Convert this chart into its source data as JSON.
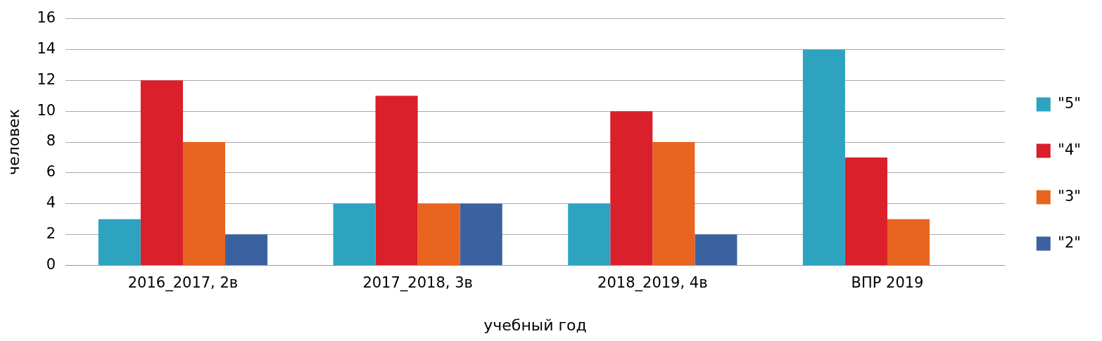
{
  "chart_data": {
    "type": "bar",
    "xlabel": "учебный год",
    "ylabel": "человек",
    "categories": [
      "2016_2017, 2в",
      "2017_2018, 3в",
      "2018_2019, 4в",
      "ВПР 2019"
    ],
    "series": [
      {
        "name": "\"5\"",
        "color": "#2ea3c0",
        "values": [
          3,
          4,
          4,
          14
        ]
      },
      {
        "name": "\"4\"",
        "color": "#d9202b",
        "values": [
          12,
          11,
          10,
          7
        ]
      },
      {
        "name": "\"3\"",
        "color": "#e8641f",
        "values": [
          8,
          4,
          8,
          3
        ]
      },
      {
        "name": "\"2\"",
        "color": "#3a62a0",
        "values": [
          2,
          4,
          2,
          0
        ]
      }
    ],
    "ylim": [
      0,
      16
    ],
    "yticks": [
      0,
      2,
      4,
      6,
      8,
      10,
      12,
      14,
      16
    ],
    "grid": "y",
    "legend": "right"
  }
}
